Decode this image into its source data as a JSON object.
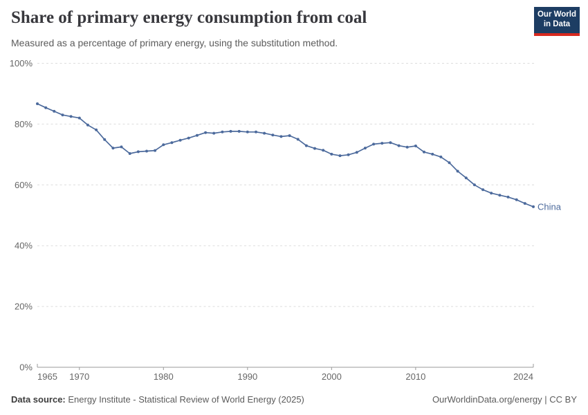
{
  "header": {
    "title": "Share of primary energy consumption from coal",
    "subtitle": "Measured as a percentage of primary energy, using the substitution method.",
    "logo": {
      "line1": "Our World",
      "line2": "in Data"
    }
  },
  "footer": {
    "source_label": "Data source:",
    "source_text": " Energy Institute - Statistical Review of World Energy (2025)",
    "rights": "OurWorldinData.org/energy | CC BY"
  },
  "colors": {
    "line": "#4c6a9c",
    "series_label": "#4c6a9c",
    "grid": "#dcdcdc",
    "axis": "#999999",
    "tick_text": "#666666",
    "logo_bg": "#1d3d63",
    "logo_accent": "#d8291f"
  },
  "chart_data": {
    "type": "line",
    "title": "Share of primary energy consumption from coal",
    "xlabel": "",
    "ylabel": "",
    "xlim": [
      1965,
      2024
    ],
    "ylim": [
      0,
      100
    ],
    "x_ticks": [
      1965,
      1970,
      1980,
      1990,
      2000,
      2010,
      2024
    ],
    "y_ticks": [
      0,
      20,
      40,
      60,
      80,
      100
    ],
    "y_tick_suffix": "%",
    "grid": "horizontal-dashed",
    "legend": "end-of-line-label",
    "series": [
      {
        "name": "China",
        "x": [
          1965,
          1966,
          1967,
          1968,
          1969,
          1970,
          1971,
          1972,
          1973,
          1974,
          1975,
          1976,
          1977,
          1978,
          1979,
          1980,
          1981,
          1982,
          1983,
          1984,
          1985,
          1986,
          1987,
          1988,
          1989,
          1990,
          1991,
          1992,
          1993,
          1994,
          1995,
          1996,
          1997,
          1998,
          1999,
          2000,
          2001,
          2002,
          2003,
          2004,
          2005,
          2006,
          2007,
          2008,
          2009,
          2010,
          2011,
          2012,
          2013,
          2014,
          2015,
          2016,
          2017,
          2018,
          2019,
          2020,
          2021,
          2022,
          2023,
          2024
        ],
        "values": [
          86.7,
          85.4,
          84.2,
          83.0,
          82.5,
          82.0,
          79.7,
          78.1,
          74.9,
          72.1,
          72.5,
          70.3,
          70.9,
          71.1,
          71.3,
          73.2,
          73.9,
          74.7,
          75.4,
          76.3,
          77.2,
          77.0,
          77.4,
          77.6,
          77.6,
          77.4,
          77.4,
          77.0,
          76.4,
          75.9,
          76.2,
          75.0,
          72.9,
          72.0,
          71.4,
          70.1,
          69.6,
          69.9,
          70.7,
          72.1,
          73.4,
          73.7,
          73.9,
          72.9,
          72.4,
          72.8,
          70.8,
          70.1,
          69.2,
          67.3,
          64.5,
          62.3,
          60.0,
          58.4,
          57.3,
          56.6,
          56.0,
          55.1,
          53.9,
          52.8
        ]
      }
    ]
  }
}
